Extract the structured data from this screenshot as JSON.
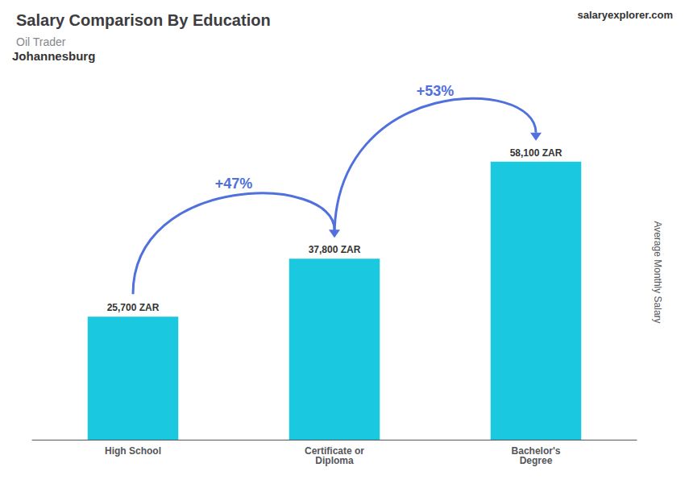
{
  "chart_data": {
    "type": "bar",
    "title": "Salary Comparison By Education",
    "subtitle": "Oil Trader",
    "ylabel": "Average Monthly Salary",
    "categories": [
      "High School",
      "Certificate or\nDiploma",
      "Bachelor's\nDegree"
    ],
    "values": [
      25700,
      37800,
      58100
    ],
    "value_labels": [
      "25,700 ZAR",
      "37,800 ZAR",
      "58,100 ZAR"
    ],
    "data_labels": true,
    "color": "#1ac8e0",
    "ylim": [
      0,
      70000
    ],
    "yticks": [
      0,
      10000,
      20000,
      30000,
      40000,
      50000,
      60000,
      70000
    ],
    "tick_labels": "x",
    "grid": false,
    "annotations": [
      {
        "text": "Johannesburg"
      },
      {
        "text": "salaryexplorer.com"
      },
      {
        "text": "+47%",
        "from": "High School",
        "to": "Certificate or\nDiploma"
      },
      {
        "text": "+53%",
        "from": "Certificate or\nDiploma",
        "to": "Bachelor's\nDegree"
      }
    ]
  }
}
